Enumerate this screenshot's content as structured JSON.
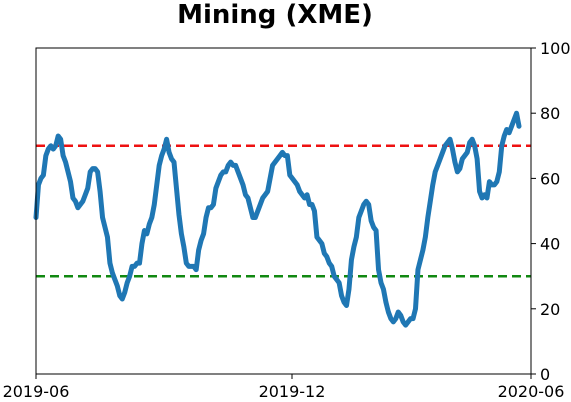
{
  "chart_data": {
    "type": "line",
    "title": "Mining (XME)",
    "xlabel": "",
    "ylabel": "",
    "x_ticks": [
      "2019-06",
      "2019-12",
      "2020-06"
    ],
    "y_ticks": [
      "0",
      "20",
      "40",
      "60",
      "80",
      "100"
    ],
    "ylim": [
      0,
      100
    ],
    "y_axis_side": "right",
    "grid": false,
    "legend": "none",
    "reference_lines": [
      {
        "value": 70,
        "color": "#ee1111",
        "style": "dashed"
      },
      {
        "value": 30,
        "color": "#118811",
        "style": "dashed"
      }
    ],
    "series": [
      {
        "color": "#1f77b4",
        "values": [
          48,
          58,
          60,
          61,
          67,
          69,
          70,
          69,
          70,
          73,
          72,
          67,
          65,
          62,
          59,
          54,
          53,
          51,
          52,
          53,
          55,
          57,
          62,
          63,
          63,
          62,
          56,
          48,
          45,
          42,
          34,
          31,
          29,
          27,
          24,
          23,
          25,
          28,
          30,
          33,
          33,
          34,
          34,
          40,
          44,
          43,
          46,
          48,
          52,
          58,
          64,
          67,
          69,
          72,
          68,
          66,
          65,
          57,
          49,
          43,
          39,
          34,
          33,
          33,
          33,
          32,
          38,
          41,
          43,
          48,
          51,
          51,
          52,
          57,
          59,
          61,
          62,
          62,
          64,
          65,
          64,
          64,
          62,
          60,
          58,
          55,
          54,
          51,
          48,
          48,
          50,
          52,
          54,
          55,
          56,
          60,
          64,
          65,
          66,
          67,
          68,
          67,
          67,
          61,
          60,
          59,
          58,
          56,
          55,
          54,
          55,
          52,
          52,
          50,
          42,
          41,
          40,
          37,
          36,
          34,
          33,
          30,
          29,
          28,
          24,
          22,
          21,
          26,
          35,
          39,
          42,
          48,
          50,
          52,
          53,
          52,
          47,
          45,
          44,
          32,
          28,
          26,
          22,
          19,
          17,
          16,
          17,
          19,
          18,
          16,
          15,
          16,
          17,
          17,
          20,
          32,
          35,
          38,
          42,
          48,
          53,
          58,
          62,
          64,
          66,
          68,
          70,
          71,
          72,
          69,
          65,
          62,
          63,
          66,
          67,
          68,
          71,
          72,
          70,
          66,
          56,
          54,
          55,
          54,
          59,
          58,
          58,
          59,
          62,
          70,
          73,
          75,
          74,
          76,
          78,
          80,
          76
        ]
      }
    ]
  }
}
